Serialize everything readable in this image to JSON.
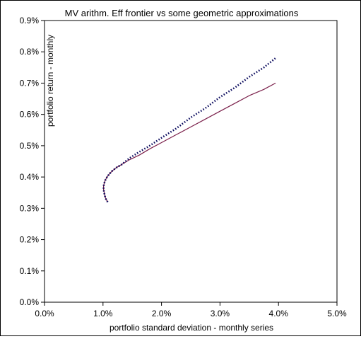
{
  "chart_data": {
    "type": "line",
    "title": "MV arithm. Eff frontier vs some geometric approximations",
    "xlabel": "portfolio standard deviation - monthly series",
    "ylabel": "portfolio return - monthly",
    "x_ticks": [
      "0.0%",
      "1.0%",
      "2.0%",
      "3.0%",
      "4.0%",
      "5.0%"
    ],
    "y_ticks": [
      "0.0%",
      "0.1%",
      "0.2%",
      "0.3%",
      "0.4%",
      "0.5%",
      "0.6%",
      "0.7%",
      "0.8%",
      "0.9%"
    ],
    "xlim": [
      0,
      5
    ],
    "ylim": [
      0,
      0.9
    ],
    "units": "percent",
    "grid": false,
    "legend": "none",
    "colors": {
      "dotted_series": "#0b0b5e",
      "solid_series": "#7a1f4a",
      "axis": "#000000",
      "frame": "#000000"
    },
    "series": [
      {
        "style": "dotted",
        "color": "#0b0b5e",
        "points": [
          [
            1.08,
            0.32
          ],
          [
            1.05,
            0.33
          ],
          [
            1.03,
            0.34
          ],
          [
            1.02,
            0.35
          ],
          [
            1.01,
            0.36
          ],
          [
            1.01,
            0.37
          ],
          [
            1.02,
            0.38
          ],
          [
            1.04,
            0.39
          ],
          [
            1.07,
            0.4
          ],
          [
            1.11,
            0.41
          ],
          [
            1.16,
            0.42
          ],
          [
            1.23,
            0.43
          ],
          [
            1.32,
            0.44
          ],
          [
            1.45,
            0.46
          ],
          [
            1.62,
            0.48
          ],
          [
            1.8,
            0.5
          ],
          [
            2.0,
            0.525
          ],
          [
            2.25,
            0.555
          ],
          [
            2.5,
            0.59
          ],
          [
            2.75,
            0.62
          ],
          [
            3.0,
            0.655
          ],
          [
            3.25,
            0.685
          ],
          [
            3.5,
            0.72
          ],
          [
            3.75,
            0.75
          ],
          [
            3.95,
            0.78
          ]
        ]
      },
      {
        "style": "solid",
        "color": "#7a1f4a",
        "points": [
          [
            1.08,
            0.32
          ],
          [
            1.05,
            0.33
          ],
          [
            1.03,
            0.34
          ],
          [
            1.02,
            0.35
          ],
          [
            1.01,
            0.36
          ],
          [
            1.01,
            0.37
          ],
          [
            1.02,
            0.38
          ],
          [
            1.04,
            0.39
          ],
          [
            1.07,
            0.4
          ],
          [
            1.11,
            0.41
          ],
          [
            1.16,
            0.42
          ],
          [
            1.23,
            0.43
          ],
          [
            1.32,
            0.44
          ],
          [
            1.45,
            0.455
          ],
          [
            1.62,
            0.47
          ],
          [
            1.8,
            0.49
          ],
          [
            2.0,
            0.51
          ],
          [
            2.25,
            0.535
          ],
          [
            2.5,
            0.56
          ],
          [
            2.75,
            0.585
          ],
          [
            3.0,
            0.61
          ],
          [
            3.25,
            0.635
          ],
          [
            3.5,
            0.66
          ],
          [
            3.75,
            0.68
          ],
          [
            3.95,
            0.7
          ]
        ]
      }
    ]
  }
}
